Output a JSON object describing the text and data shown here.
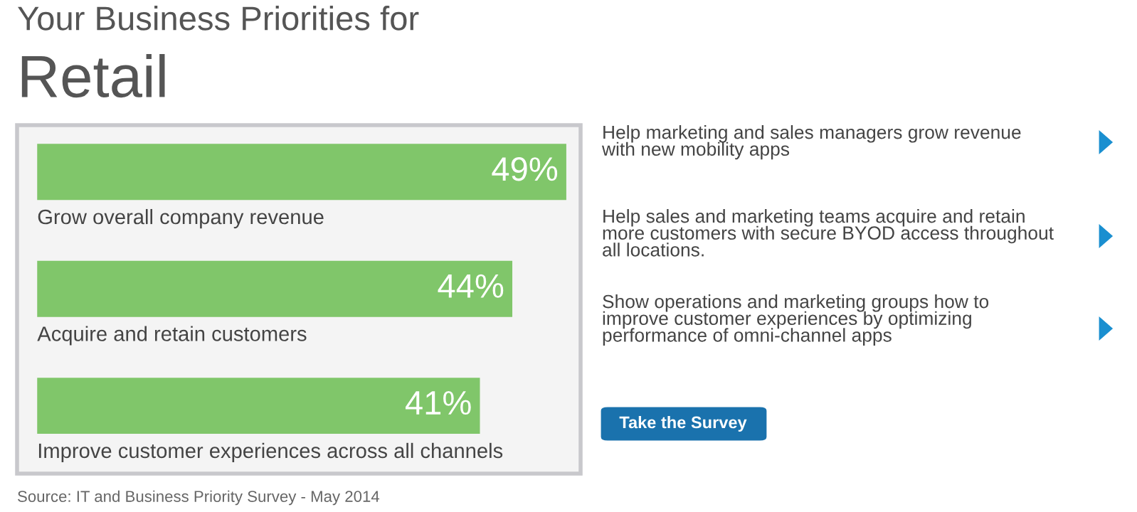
{
  "chart_data": {
    "type": "bar",
    "orientation": "horizontal",
    "title": "Your Business Priorities for",
    "subtitle": "Retail",
    "categories": [
      "Grow overall company revenue",
      "Acquire and retain customers",
      "Improve customer experiences across all channels"
    ],
    "values": [
      49,
      44,
      41
    ],
    "color": "#80c66a",
    "value_labels": [
      "49%",
      "44%",
      "41%"
    ],
    "annotations": [
      "Help marketing and sales managers grow revenue\nwith new mobility apps",
      "Help sales and marketing teams acquire and retain\nmore customers with secure BYOD access throughout\nall locations.",
      "Show operations and marketing groups how to\nimprove customer experiences by optimizing\nperformance of omni-channel apps",
      "Take the Survey",
      "Source: IT and Business Priority Survey - May 2014"
    ]
  }
}
